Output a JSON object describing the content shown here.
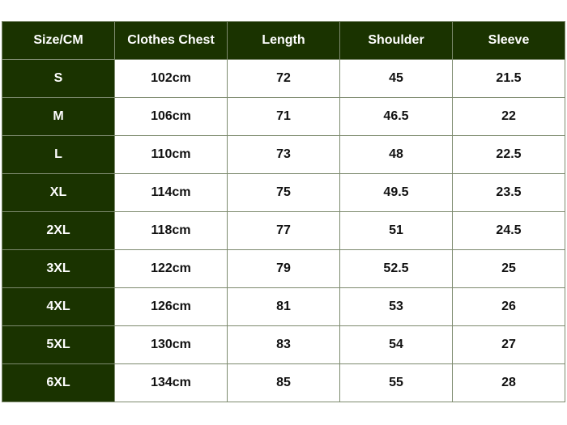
{
  "colors": {
    "header_bg": "#1a3300",
    "header_text": "#ffffff",
    "cell_bg": "#ffffff",
    "cell_text": "#111111"
  },
  "headers": [
    "Size/CM",
    "Clothes Chest",
    "Length",
    "Shoulder",
    "Sleeve"
  ],
  "rows": [
    [
      "S",
      "102cm",
      "72",
      "45",
      "21.5"
    ],
    [
      "M",
      "106cm",
      "71",
      "46.5",
      "22"
    ],
    [
      "L",
      "110cm",
      "73",
      "48",
      "22.5"
    ],
    [
      "XL",
      "114cm",
      "75",
      "49.5",
      "23.5"
    ],
    [
      "2XL",
      "118cm",
      "77",
      "51",
      "24.5"
    ],
    [
      "3XL",
      "122cm",
      "79",
      "52.5",
      "25"
    ],
    [
      "4XL",
      "126cm",
      "81",
      "53",
      "26"
    ],
    [
      "5XL",
      "130cm",
      "83",
      "54",
      "27"
    ],
    [
      "6XL",
      "134cm",
      "85",
      "55",
      "28"
    ]
  ]
}
